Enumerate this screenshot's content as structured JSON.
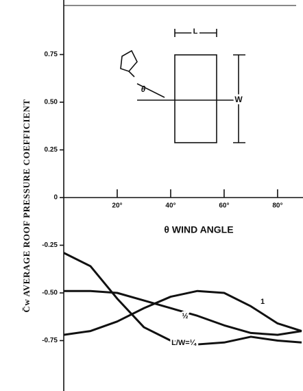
{
  "chart_data": {
    "type": "line",
    "y_label": "C̄w AVERAGE ROOF PRESSURE COEFFICIENT",
    "x_label": "θ WIND ANGLE",
    "diagram_labels": {
      "length": "L",
      "width": "W",
      "angle": "θ"
    },
    "x": [
      0,
      10,
      20,
      30,
      40,
      50,
      60,
      70,
      80,
      89
    ],
    "series": [
      {
        "name": "L/W=¼",
        "color": "#111111",
        "values": [
          -0.29,
          -0.36,
          -0.53,
          -0.68,
          -0.75,
          -0.77,
          -0.76,
          -0.73,
          -0.75,
          -0.76
        ]
      },
      {
        "name": "½",
        "color": "#111111",
        "values": [
          -0.49,
          -0.49,
          -0.5,
          -0.54,
          -0.58,
          -0.62,
          -0.67,
          -0.71,
          -0.72,
          -0.7
        ]
      },
      {
        "name": "1",
        "color": "#111111",
        "values": [
          -0.72,
          -0.7,
          -0.65,
          -0.58,
          -0.52,
          -0.49,
          -0.5,
          -0.57,
          -0.66,
          -0.7
        ]
      }
    ],
    "xlim": [
      0,
      89
    ],
    "ylim": [
      -1,
      1
    ],
    "xticks": [
      {
        "value": 20,
        "label": "20°"
      },
      {
        "value": 40,
        "label": "40°"
      },
      {
        "value": 60,
        "label": "60°"
      },
      {
        "value": 80,
        "label": "80°"
      }
    ],
    "yticks": [
      0.75,
      {
        "value": 0.5,
        "label": "0.50"
      },
      0.25,
      0,
      -0.25,
      {
        "value": -0.5,
        "label": "-0.50"
      },
      -0.75
    ]
  }
}
